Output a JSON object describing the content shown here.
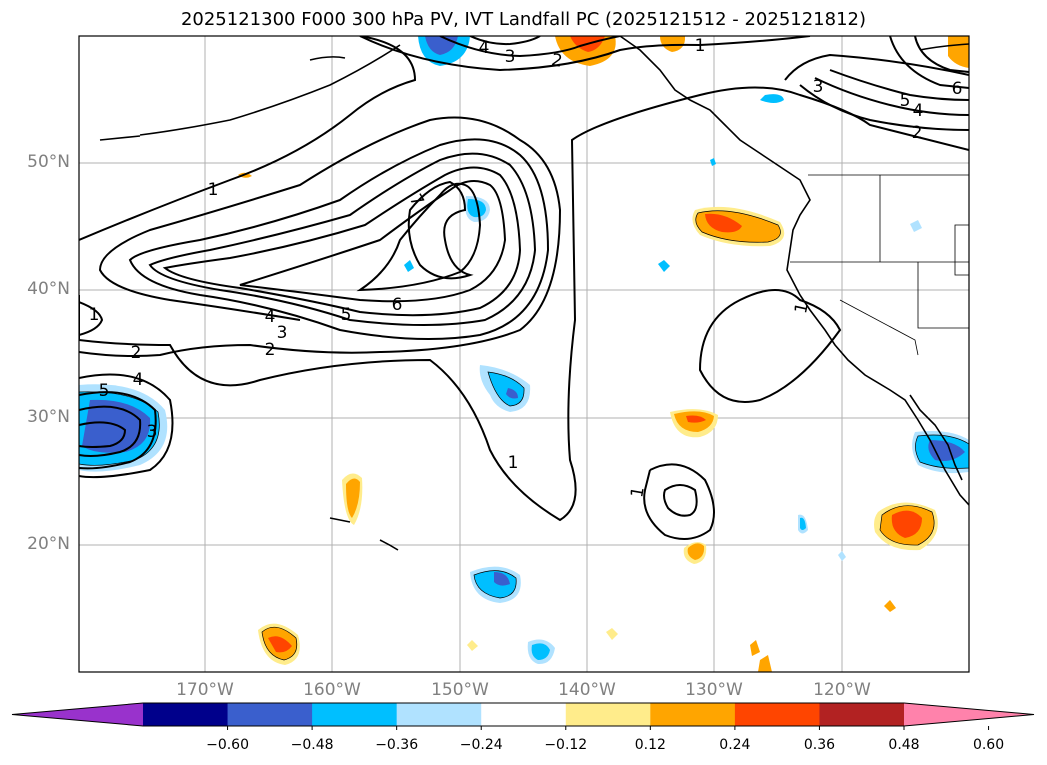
{
  "title": "2025121300 F000 300 hPa PV, IVT Landfall PC (2025121512 - 2025121812)",
  "lat_labels": [
    "50°N",
    "40°N",
    "30°N",
    "20°N"
  ],
  "lon_labels": [
    "170°W",
    "160°W",
    "150°W",
    "140°W",
    "130°W",
    "120°W"
  ],
  "contour_labels": [
    "1",
    "1",
    "1",
    "1",
    "1",
    "1",
    "2",
    "2",
    "2",
    "2",
    "3",
    "3",
    "3",
    "3",
    "4",
    "4",
    "4",
    "4",
    "5",
    "5",
    "5",
    "6",
    "6",
    "7"
  ],
  "colorbar": {
    "ticks": [
      "−0.60",
      "−0.48",
      "−0.36",
      "−0.24",
      "−0.12",
      "0.12",
      "0.24",
      "0.36",
      "0.48",
      "0.60"
    ],
    "colors": [
      "#9932cc",
      "#00008b",
      "#3a5fcd",
      "#00bfff",
      "#b0e2ff",
      "#ffffff",
      "#ffec8b",
      "#ffa500",
      "#ff4500",
      "#b22222",
      "#ff82ab"
    ]
  }
}
